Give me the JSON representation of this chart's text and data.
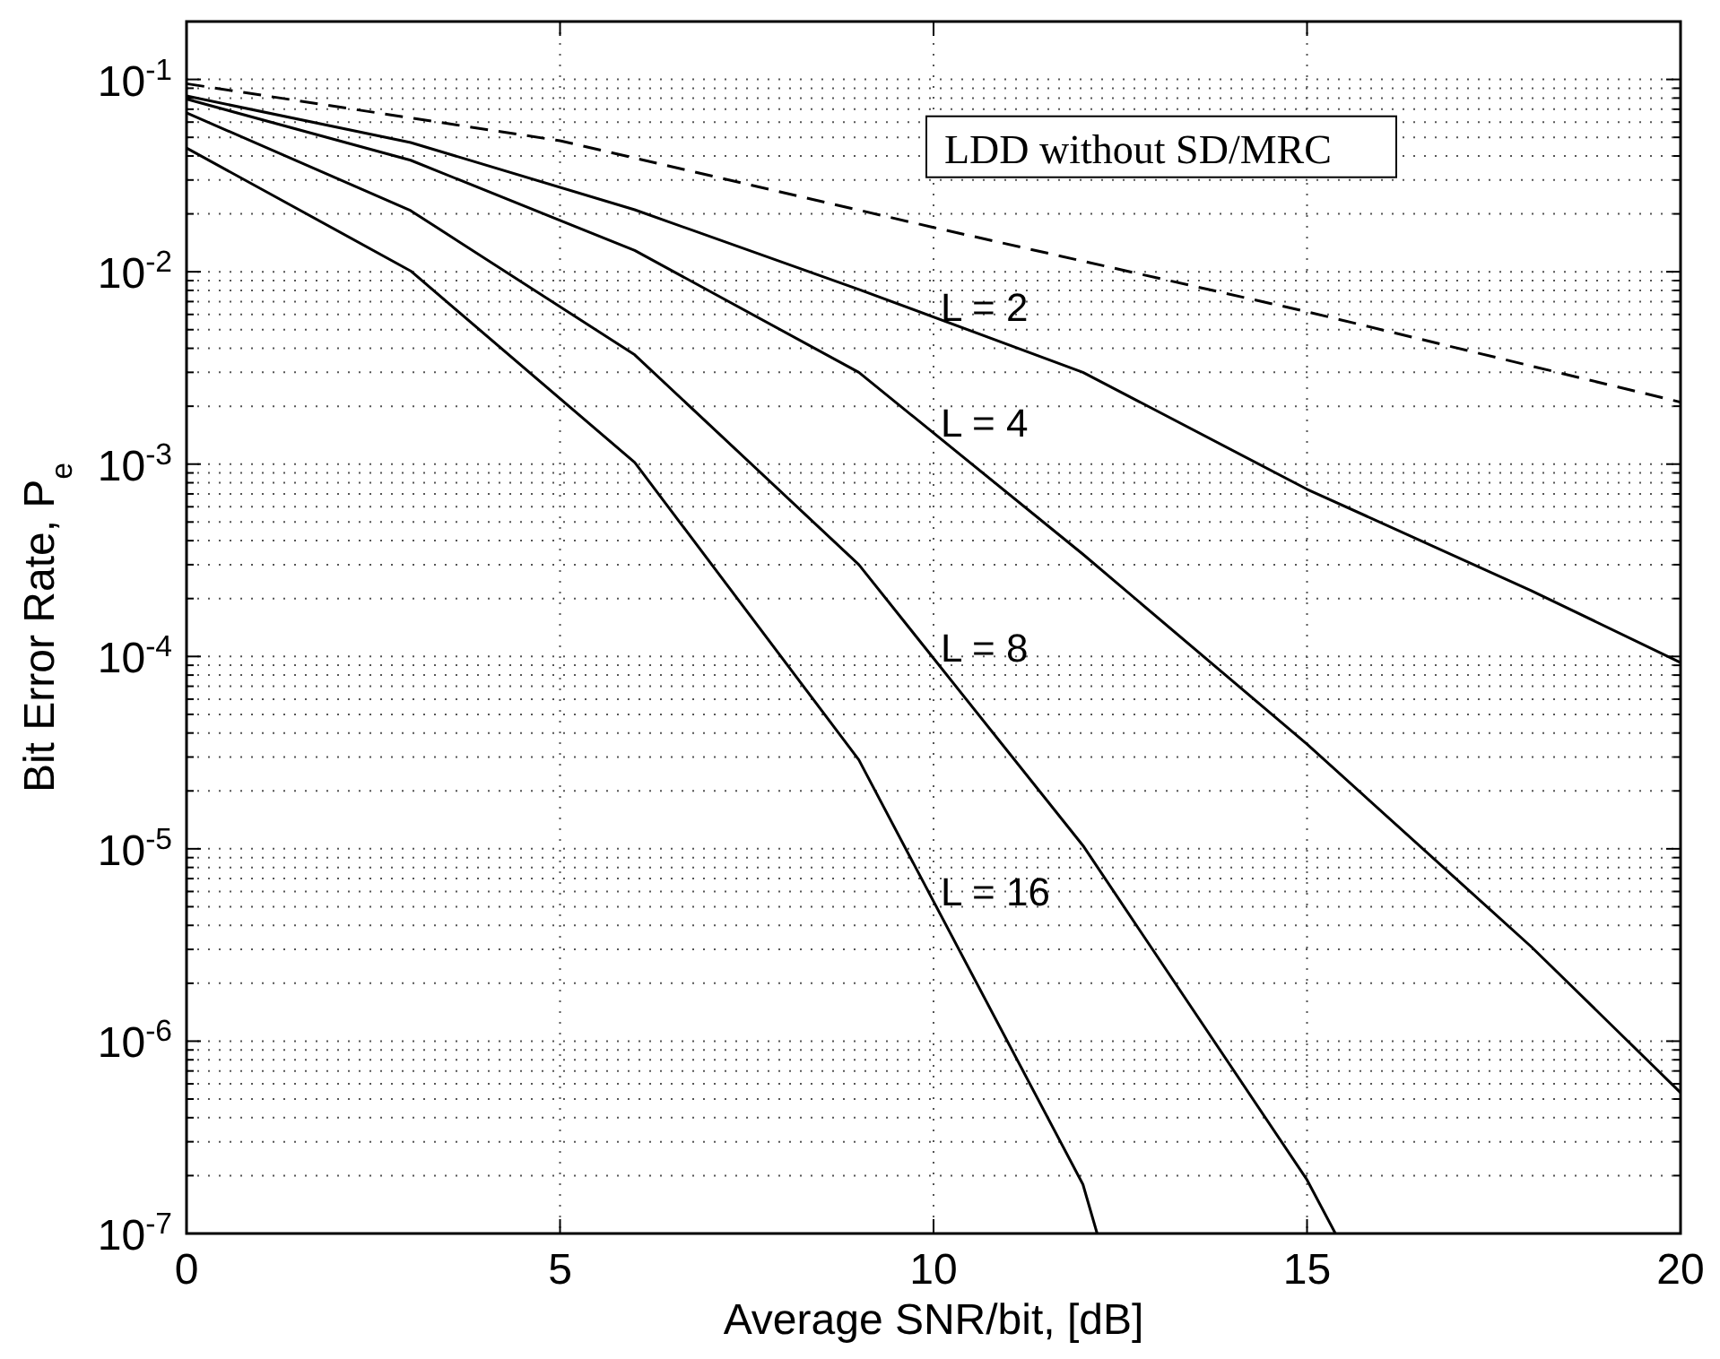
{
  "chart_data": {
    "type": "line",
    "xlabel": "Average SNR/bit, [dB]",
    "ylabel": "Bit Error Rate, P$_{e}$",
    "xlim": [
      0,
      20
    ],
    "xticks": [
      0,
      5,
      10,
      15,
      20
    ],
    "ylim": [
      1e-07,
      0.2
    ],
    "yticks": [
      {
        "value": 0.1,
        "label": "10$^{-1}$"
      },
      {
        "value": 0.01,
        "label": "10$^{-2}$"
      },
      {
        "value": 0.001,
        "label": "10$^{-3}$"
      },
      {
        "value": 0.0001,
        "label": "10$^{-4}$"
      },
      {
        "value": 1e-05,
        "label": "10$^{-5}$"
      },
      {
        "value": 1e-06,
        "label": "10$^{-6}$"
      },
      {
        "value": 1e-07,
        "label": "10$^{-7}$"
      }
    ],
    "log": "y",
    "grid": true,
    "marker": "none",
    "series": [
      {
        "name": "LDD without SD/MRC",
        "color": "#000000",
        "line_style": "dashed",
        "x": [
          0,
          5,
          10,
          15,
          20
        ],
        "values": [
          0.095,
          0.048,
          0.017,
          0.0062,
          0.0021
        ]
      },
      {
        "name": "L = 2",
        "color": "#000000",
        "line_style": "solid",
        "x": [
          0,
          3,
          6,
          9,
          12,
          15,
          18,
          20
        ],
        "values": [
          0.082,
          0.047,
          0.021,
          0.0081,
          0.003,
          0.00074,
          0.00022,
          9.3e-05
        ]
      },
      {
        "name": "L = 4",
        "color": "#000000",
        "line_style": "solid",
        "x": [
          0,
          3,
          6,
          9,
          12,
          15,
          18,
          20
        ],
        "values": [
          0.079,
          0.038,
          0.0129,
          0.003,
          0.00034,
          3.5e-05,
          3.1e-06,
          5.4e-07
        ]
      },
      {
        "name": "L = 8",
        "color": "#000000",
        "line_style": "solid",
        "x": [
          0,
          3,
          6,
          9,
          12,
          15,
          15.38
        ],
        "values": [
          0.067,
          0.0208,
          0.0037,
          0.0003,
          1.04e-05,
          1.9e-07,
          1e-07
        ]
      },
      {
        "name": "L = 16",
        "color": "#000000",
        "line_style": "solid",
        "x": [
          0,
          3,
          6,
          9,
          12,
          12.19
        ],
        "values": [
          0.044,
          0.0101,
          0.00102,
          2.9e-05,
          1.8e-07,
          1e-07
        ]
      }
    ]
  }
}
